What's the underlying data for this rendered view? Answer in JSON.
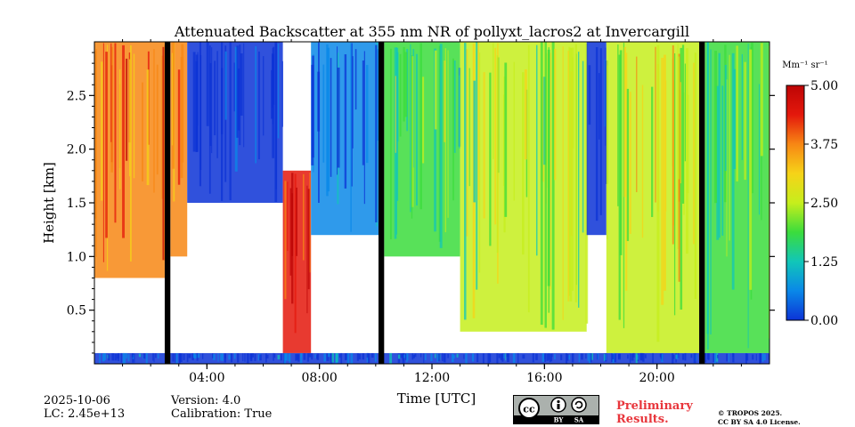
{
  "title": "Attenuated Backscatter at 355 nm NR of pollyxt_lacros2 at Invercargill",
  "colorbar": {
    "unit_label": "Mm⁻¹ sr⁻¹",
    "ticks": [
      "5.00",
      "3.75",
      "2.50",
      "1.25",
      "0.00"
    ],
    "range": [
      0,
      5
    ],
    "colors": [
      "#0c33d6",
      "#0a88e8",
      "#11c6b8",
      "#3bdc3c",
      "#c6ee1c",
      "#f6d318",
      "#f78714",
      "#e4180c",
      "#bd0505"
    ]
  },
  "chart_data": {
    "type": "heatmap",
    "title": "Attenuated Backscatter at 355 nm NR of pollyxt_lacros2 at Invercargill",
    "xlabel": "Time [UTC]",
    "ylabel": "Height [km]",
    "xlim_hours": [
      0,
      24
    ],
    "ylim_km": [
      0,
      3
    ],
    "x_ticks": [
      "04:00",
      "08:00",
      "12:00",
      "16:00",
      "20:00"
    ],
    "x_tick_hours": [
      4,
      8,
      12,
      16,
      20
    ],
    "y_ticks": [
      "0.5",
      "1.0",
      "1.5",
      "2.0",
      "2.5"
    ],
    "y_tick_km": [
      0.5,
      1.0,
      1.5,
      2.0,
      2.5
    ],
    "value_range": [
      0,
      5
    ],
    "no_data_gaps_hours": [
      [
        2.5,
        2.7
      ],
      [
        10.1,
        10.3
      ],
      [
        21.5,
        21.7
      ]
    ],
    "regions": [
      {
        "t": [
          0.0,
          2.5
        ],
        "h": [
          0.8,
          3.0
        ],
        "value": 3.8
      },
      {
        "t": [
          2.7,
          3.3
        ],
        "h": [
          1.0,
          3.0
        ],
        "value": 3.8
      },
      {
        "t": [
          3.3,
          6.7
        ],
        "h": [
          1.5,
          3.0
        ],
        "value": 0.1
      },
      {
        "t": [
          6.7,
          7.7
        ],
        "h": [
          0.1,
          1.8
        ],
        "value": 4.3
      },
      {
        "t": [
          7.7,
          10.1
        ],
        "h": [
          1.2,
          3.0
        ],
        "value": 0.6
      },
      {
        "t": [
          10.3,
          13.0
        ],
        "h": [
          1.0,
          3.0
        ],
        "value": 2.0
      },
      {
        "t": [
          13.0,
          17.5
        ],
        "h": [
          0.3,
          3.0
        ],
        "value": 2.4
      },
      {
        "t": [
          17.5,
          18.2
        ],
        "h": [
          1.2,
          3.0
        ],
        "value": 0.2
      },
      {
        "t": [
          18.2,
          21.5
        ],
        "h": [
          0.1,
          3.0
        ],
        "value": 2.6
      },
      {
        "t": [
          21.7,
          24.0
        ],
        "h": [
          0.1,
          3.0
        ],
        "value": 2.0
      },
      {
        "t": [
          0.0,
          24.0
        ],
        "h": [
          0.0,
          0.1
        ],
        "value": 0.3
      }
    ]
  },
  "footer": {
    "date": "2025-10-06",
    "lc": "LC: 2.45e+13",
    "version": "Version: 4.0",
    "calibration": "Calibration: True",
    "preliminary_line1": "Preliminary",
    "preliminary_line2": "Results.",
    "copyright_line1": "© TROPOS 2025.",
    "copyright_line2": "CC BY SA 4.0 License.",
    "license_badge": {
      "main": "cc",
      "by": "BY",
      "sa": "SA"
    }
  }
}
